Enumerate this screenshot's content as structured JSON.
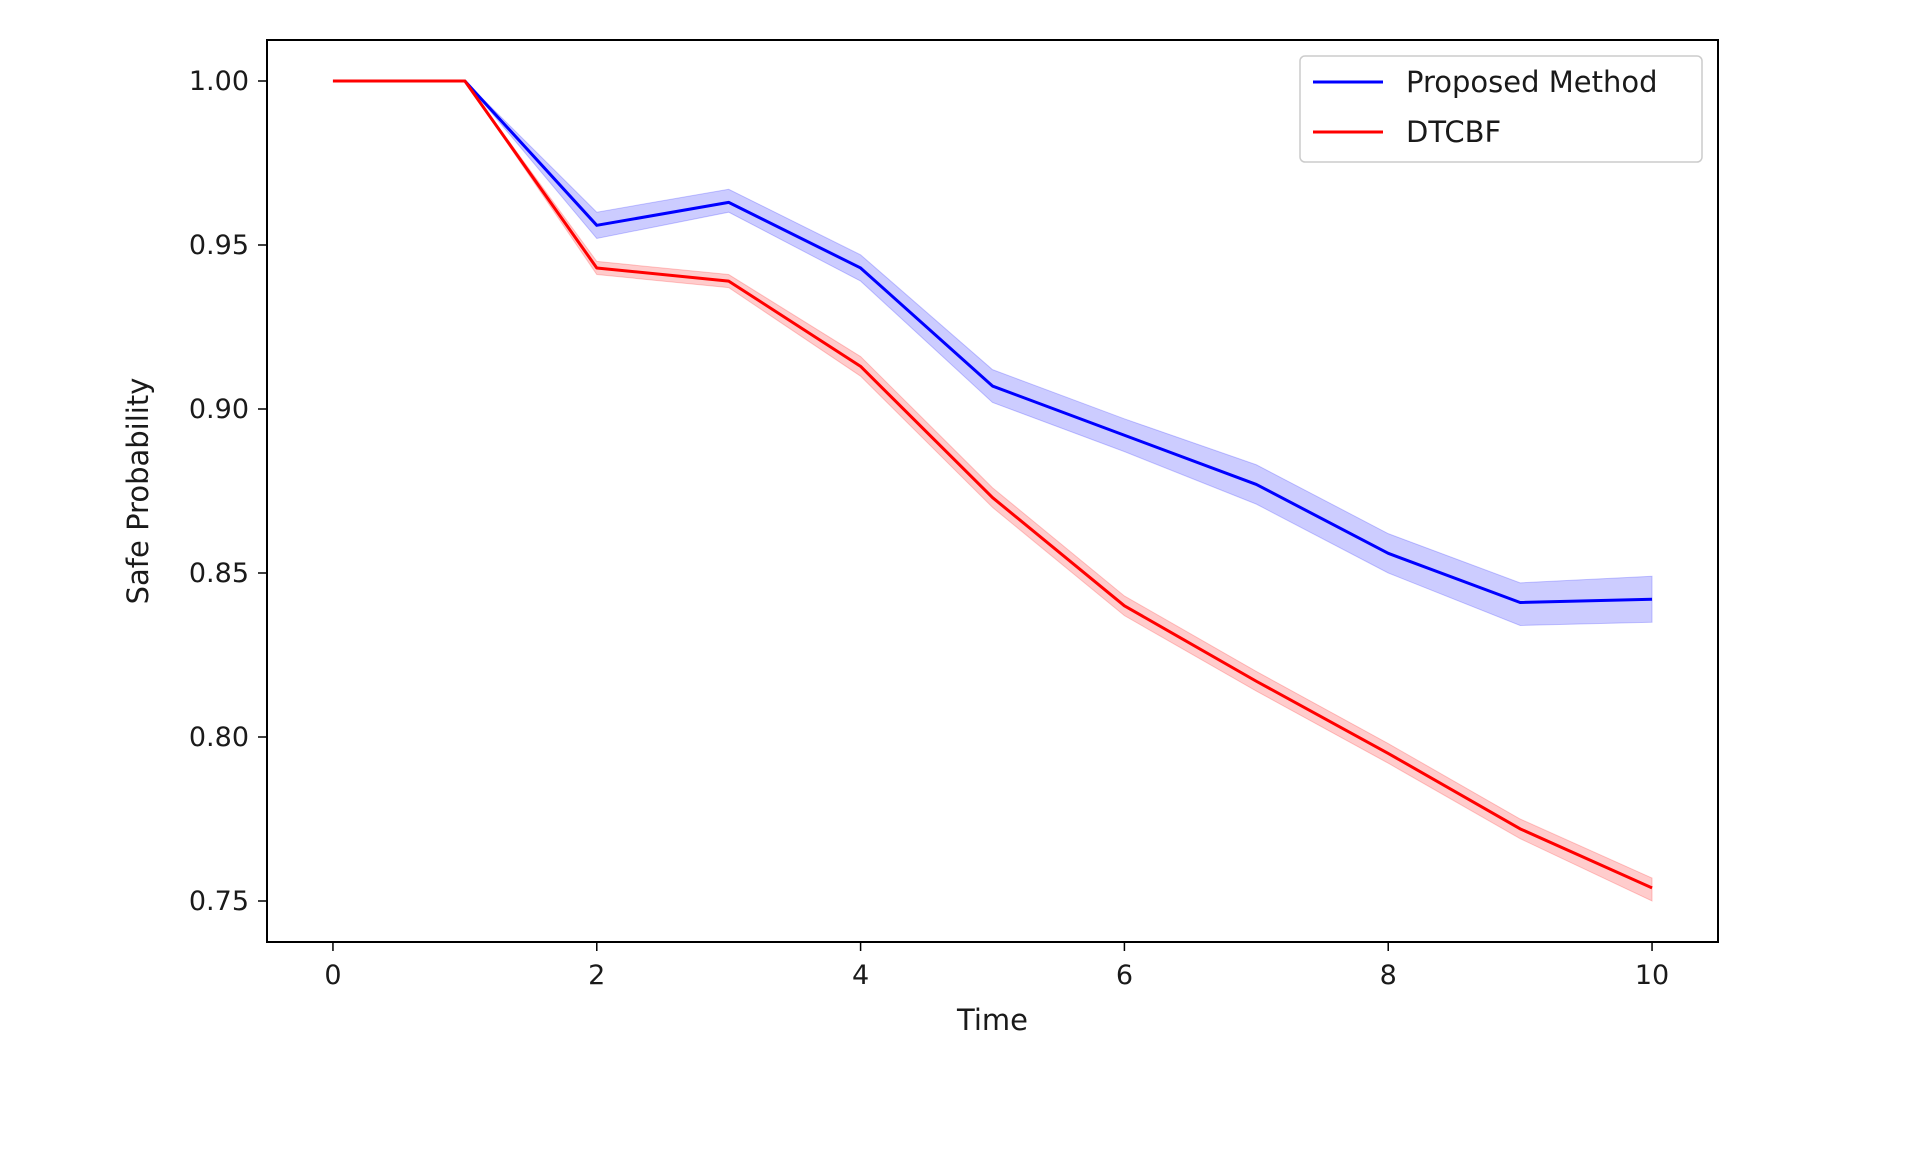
{
  "chart_data": {
    "type": "line",
    "title": "",
    "xlabel": "Time",
    "ylabel": "Safe Probability",
    "x": [
      0,
      1,
      2,
      3,
      4,
      5,
      6,
      7,
      8,
      9,
      10
    ],
    "xlim": [
      -0.5,
      10.5
    ],
    "ylim": [
      0.7375,
      1.0125
    ],
    "x_ticks": [
      0,
      2,
      4,
      6,
      8,
      10
    ],
    "x_tick_labels": [
      "0",
      "2",
      "4",
      "6",
      "8",
      "10"
    ],
    "y_ticks": [
      0.75,
      0.8,
      0.85,
      0.9,
      0.95,
      1.0
    ],
    "y_tick_labels": [
      "0.75",
      "0.80",
      "0.85",
      "0.90",
      "0.95",
      "1.00"
    ],
    "grid": false,
    "legend_position": "top-right",
    "series": [
      {
        "name": "Proposed Method",
        "color": "#0000ff",
        "values": [
          1.0,
          1.0,
          0.956,
          0.963,
          0.943,
          0.907,
          0.892,
          0.877,
          0.856,
          0.841,
          0.842
        ],
        "lower": [
          1.0,
          1.0,
          0.952,
          0.96,
          0.939,
          0.902,
          0.887,
          0.871,
          0.85,
          0.834,
          0.835
        ],
        "upper": [
          1.0,
          1.0,
          0.96,
          0.967,
          0.947,
          0.912,
          0.897,
          0.883,
          0.862,
          0.847,
          0.849
        ]
      },
      {
        "name": "DTCBF",
        "color": "#ff0000",
        "values": [
          1.0,
          1.0,
          0.943,
          0.939,
          0.913,
          0.873,
          0.84,
          0.817,
          0.795,
          0.772,
          0.754
        ],
        "lower": [
          1.0,
          1.0,
          0.941,
          0.937,
          0.91,
          0.87,
          0.837,
          0.814,
          0.792,
          0.769,
          0.75
        ],
        "upper": [
          1.0,
          1.0,
          0.945,
          0.941,
          0.916,
          0.876,
          0.843,
          0.82,
          0.798,
          0.775,
          0.757
        ]
      }
    ]
  }
}
